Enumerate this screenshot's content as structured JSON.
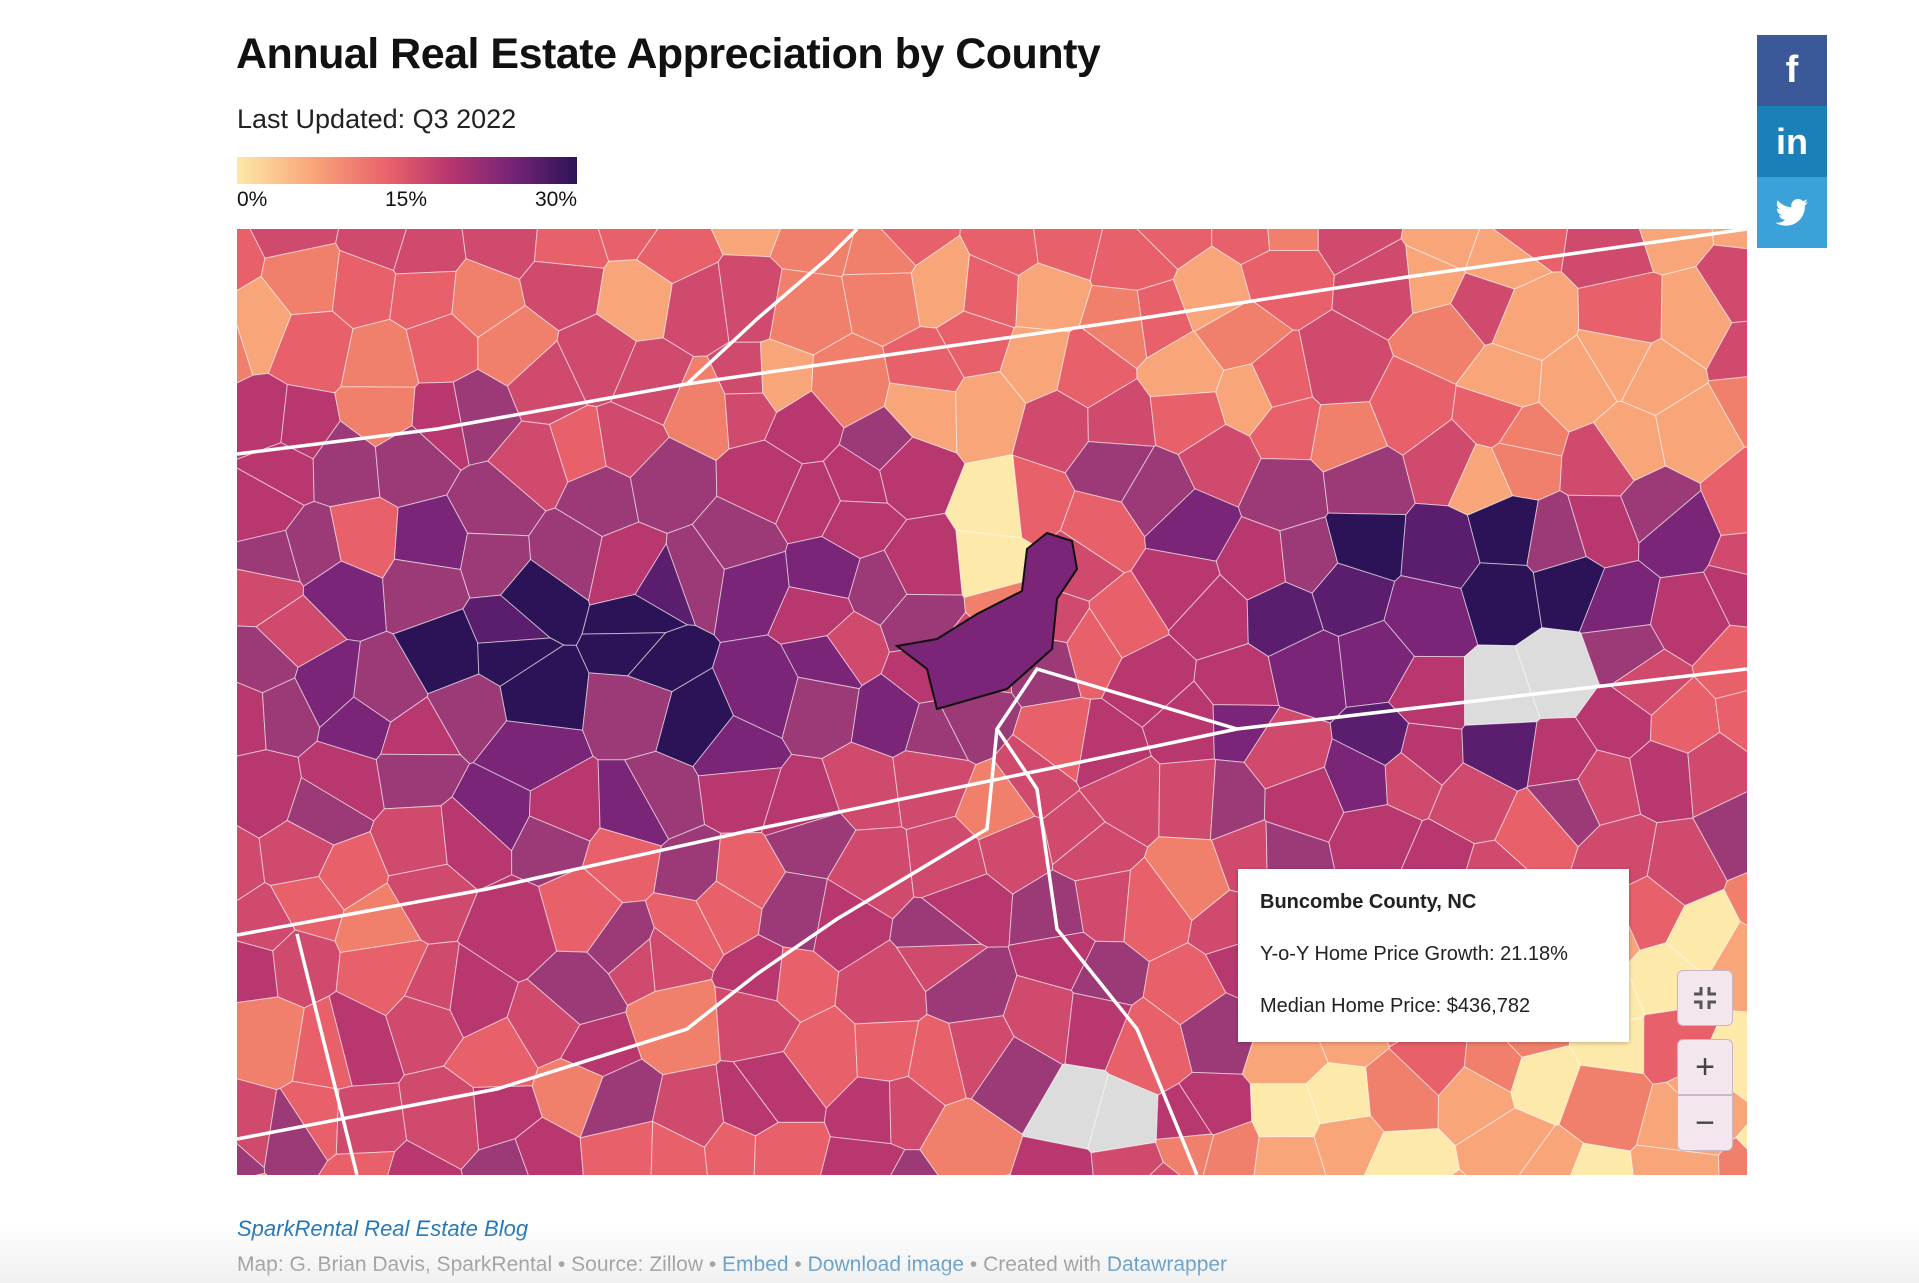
{
  "header": {
    "title": "Annual Real Estate Appreciation by County",
    "subtitle": "Last Updated: Q3 2022"
  },
  "legend": {
    "labels": [
      "0%",
      "15%",
      "30%"
    ],
    "colors": [
      "#fde9a9",
      "#f9a57a",
      "#e8606a",
      "#b9376f",
      "#7a2577",
      "#2c1357"
    ]
  },
  "tooltip": {
    "county": "Buncombe County, NC",
    "growth_label": "Y-o-Y Home Price Growth: 21.18%",
    "price_label": "Median Home Price: $436,782"
  },
  "controls": {
    "fullscreen_icon": "fullscreen-exit-icon",
    "zoom_in": "+",
    "zoom_out": "−"
  },
  "social": {
    "facebook": "f",
    "linkedin": "in",
    "twitter_icon": "twitter-bird-icon",
    "colors": {
      "facebook": "#3b5998",
      "linkedin": "#1b7fb8",
      "twitter": "#3aa1d9"
    }
  },
  "footer": {
    "source_link": "SparkRental Real Estate Blog",
    "credits_prefix": "Map: G. Brian Davis, SparkRental • Source: Zillow • ",
    "embed": "Embed",
    "sep1": " • ",
    "download": "Download image",
    "sep2": " • Created with ",
    "datawrapper": "Datawrapper"
  },
  "map": {
    "palette": [
      "#fde9a9",
      "#f9a57a",
      "#f0806b",
      "#e8606a",
      "#d04a6d",
      "#b9376f",
      "#9c3a78",
      "#7a2577",
      "#5b1d6e",
      "#2c1357"
    ],
    "no_data_color": "#dcdcdc"
  }
}
